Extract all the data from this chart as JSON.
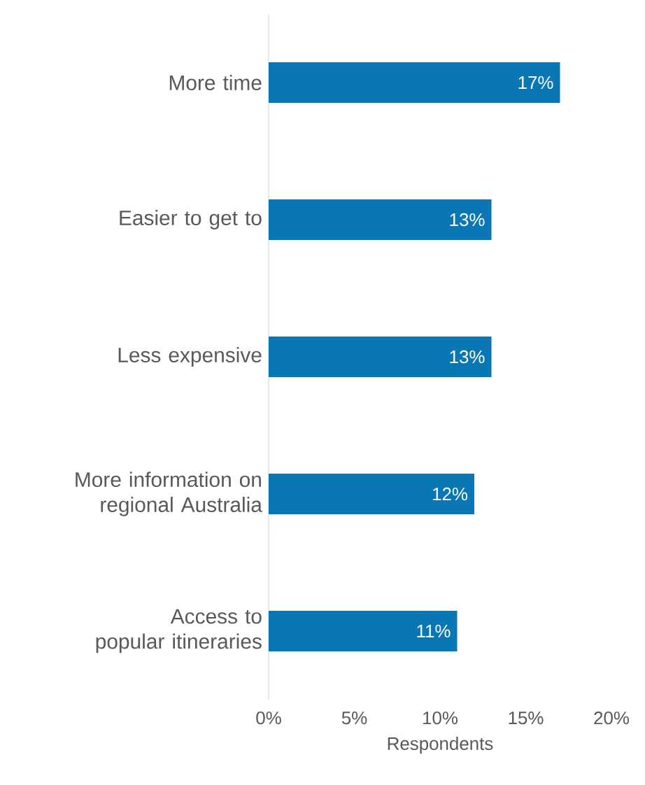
{
  "chart_data": {
    "type": "bar",
    "orientation": "horizontal",
    "categories": [
      "More time",
      "Easier to get to",
      "Less expensive",
      "More information on regional Australia",
      "Access to popular itineraries"
    ],
    "values": [
      17,
      13,
      13,
      12,
      11
    ],
    "value_labels": [
      "17%",
      "13%",
      "13%",
      "12%",
      "11%"
    ],
    "color": "#0a77b5",
    "xlim": [
      0,
      20
    ],
    "xticks": [
      {
        "value": 0,
        "label": "0%"
      },
      {
        "value": 5,
        "label": "5%"
      },
      {
        "value": 10,
        "label": "10%"
      },
      {
        "value": 15,
        "label": "15%"
      },
      {
        "value": 20,
        "label": "20%"
      }
    ],
    "xlabel": "Respondents",
    "grid": false
  }
}
